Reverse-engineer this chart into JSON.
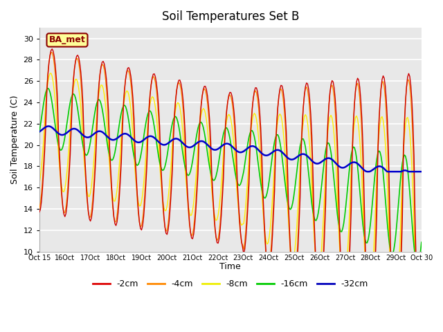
{
  "title": "Soil Temperatures Set B",
  "xlabel": "Time",
  "ylabel": "Soil Temperature (C)",
  "ylim": [
    10,
    31
  ],
  "yticks": [
    10,
    12,
    14,
    16,
    18,
    20,
    22,
    24,
    26,
    28,
    30
  ],
  "background_color": "#e8e8e8",
  "grid_color": "#ffffff",
  "legend_label": "BA_met",
  "line_colors": {
    "-2cm": "#cc0000",
    "-4cm": "#ff8800",
    "-8cm": "#ffee00",
    "-16cm": "#00cc00",
    "-32cm": "#0000cc"
  },
  "legend_colors": {
    "-2cm": "#dd0000",
    "-4cm": "#ff8800",
    "-8cm": "#eeee00",
    "-16cm": "#00cc00",
    "-32cm": "#0000bb"
  },
  "title_fontsize": 12
}
